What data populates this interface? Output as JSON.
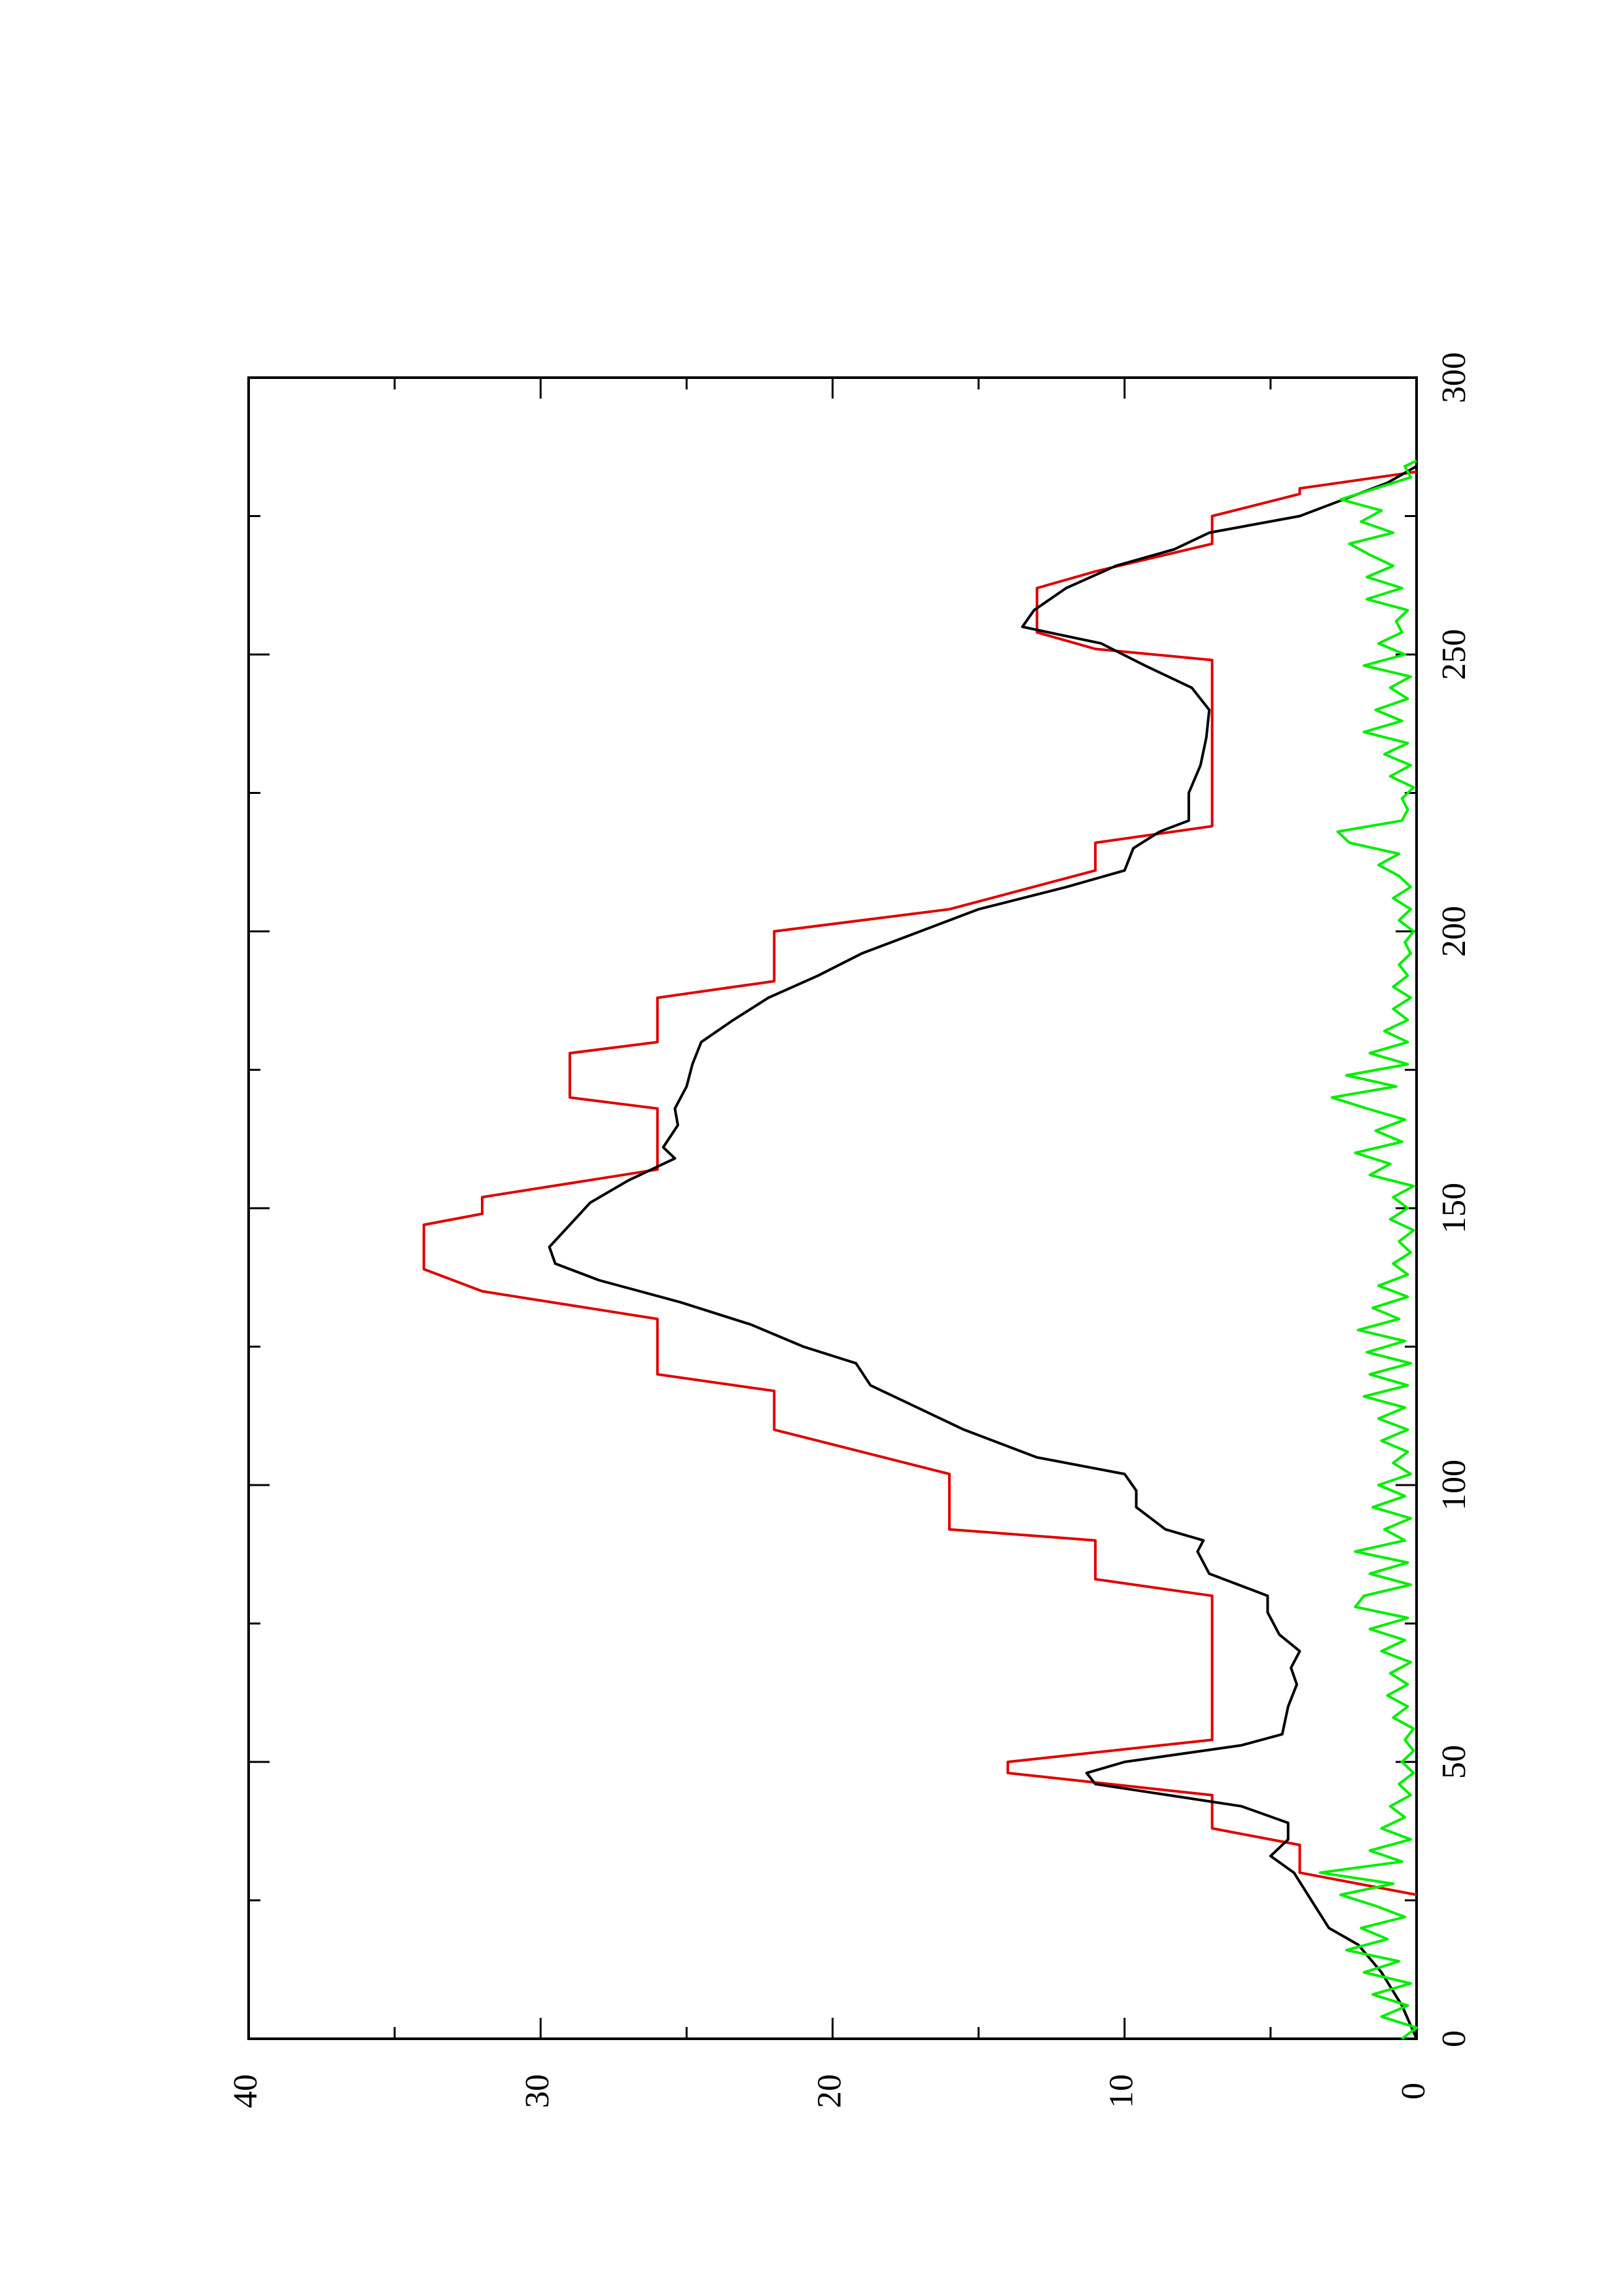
{
  "chart_data": {
    "type": "line",
    "orientation": "rotated-90",
    "title": "",
    "xlabel": "",
    "ylabel": "",
    "xlim": [
      0,
      300
    ],
    "ylim": [
      0,
      40
    ],
    "x_ticks": [
      0,
      50,
      100,
      150,
      200,
      250,
      300
    ],
    "x_minor_ticks": [
      25,
      75,
      125,
      175,
      225,
      275
    ],
    "y_ticks": [
      0,
      10,
      20,
      30,
      40
    ],
    "y_minor_ticks": [
      5,
      15,
      25,
      35
    ],
    "x_tick_labels": [
      "0",
      "50",
      "100",
      "150",
      "200",
      "250",
      "300"
    ],
    "y_tick_labels": [
      "0",
      "10",
      "20",
      "30",
      "40"
    ],
    "grid": false,
    "legend": "none",
    "series": [
      {
        "color": "#e00000",
        "style": "step",
        "points": [
          [
            26,
            0
          ],
          [
            30,
            4
          ],
          [
            35,
            4
          ],
          [
            38,
            7
          ],
          [
            44,
            7
          ],
          [
            48,
            14
          ],
          [
            50,
            14
          ],
          [
            54,
            7
          ],
          [
            80,
            7
          ],
          [
            83,
            11
          ],
          [
            90,
            11
          ],
          [
            92,
            16
          ],
          [
            96,
            16
          ],
          [
            102,
            16
          ],
          [
            110,
            22
          ],
          [
            117,
            22
          ],
          [
            120,
            26
          ],
          [
            130,
            26
          ],
          [
            135,
            32
          ],
          [
            139,
            34
          ],
          [
            147,
            34
          ],
          [
            149,
            32
          ],
          [
            152,
            32
          ],
          [
            157,
            26
          ],
          [
            160,
            26
          ],
          [
            168,
            26
          ],
          [
            170,
            29
          ],
          [
            178,
            29
          ],
          [
            180,
            26
          ],
          [
            188,
            26
          ],
          [
            191,
            22
          ],
          [
            200,
            22
          ],
          [
            204,
            16
          ],
          [
            211,
            11
          ],
          [
            216,
            11
          ],
          [
            219,
            7
          ],
          [
            249,
            7
          ],
          [
            251,
            11
          ],
          [
            254,
            13
          ],
          [
            257,
            13
          ],
          [
            262,
            13
          ],
          [
            265,
            11
          ],
          [
            270,
            7
          ],
          [
            275,
            7
          ],
          [
            279,
            4
          ],
          [
            280,
            4
          ],
          [
            283,
            0
          ]
        ]
      },
      {
        "color": "#000000",
        "style": "line",
        "points": [
          [
            0,
            0
          ],
          [
            6,
            0.5
          ],
          [
            12,
            1.2
          ],
          [
            17,
            2
          ],
          [
            20,
            3
          ],
          [
            25,
            3.6
          ],
          [
            30,
            4.2
          ],
          [
            33,
            5
          ],
          [
            36,
            4.4
          ],
          [
            39,
            4.4
          ],
          [
            42,
            6
          ],
          [
            46,
            11
          ],
          [
            48,
            11.3
          ],
          [
            50,
            10
          ],
          [
            53,
            6
          ],
          [
            55,
            4.6
          ],
          [
            60,
            4.4
          ],
          [
            64,
            4.1
          ],
          [
            67,
            4.3
          ],
          [
            70,
            4
          ],
          [
            73,
            4.7
          ],
          [
            77,
            5.1
          ],
          [
            80,
            5.1
          ],
          [
            84,
            7.1
          ],
          [
            88,
            7.5
          ],
          [
            90,
            7.3
          ],
          [
            92,
            8.6
          ],
          [
            96,
            9.6
          ],
          [
            99,
            9.6
          ],
          [
            102,
            10
          ],
          [
            105,
            13
          ],
          [
            110,
            15.5
          ],
          [
            115,
            17.5
          ],
          [
            118,
            18.7
          ],
          [
            122,
            19.2
          ],
          [
            125,
            21
          ],
          [
            129,
            22.8
          ],
          [
            133,
            25.2
          ],
          [
            137,
            28
          ],
          [
            140,
            29.5
          ],
          [
            143,
            29.7
          ],
          [
            147,
            29
          ],
          [
            151,
            28.3
          ],
          [
            155,
            27
          ],
          [
            159,
            25.4
          ],
          [
            161,
            25.8
          ],
          [
            165,
            25.3
          ],
          [
            168,
            25.4
          ],
          [
            172,
            25
          ],
          [
            176,
            24.8
          ],
          [
            180,
            24.5
          ],
          [
            184,
            23.4
          ],
          [
            188,
            22.2
          ],
          [
            192,
            20.5
          ],
          [
            196,
            19
          ],
          [
            200,
            17
          ],
          [
            204,
            15
          ],
          [
            208,
            12
          ],
          [
            211,
            10
          ],
          [
            215,
            9.7
          ],
          [
            218,
            8.8
          ],
          [
            220,
            7.8
          ],
          [
            225,
            7.8
          ],
          [
            230,
            7.4
          ],
          [
            235,
            7.2
          ],
          [
            240,
            7.1
          ],
          [
            244,
            7.7
          ],
          [
            248,
            9.3
          ],
          [
            252,
            10.8
          ],
          [
            255,
            13.5
          ],
          [
            258,
            13.1
          ],
          [
            262,
            12
          ],
          [
            266,
            10.3
          ],
          [
            269,
            8.3
          ],
          [
            272,
            7.1
          ],
          [
            275,
            4
          ],
          [
            278,
            2.5
          ],
          [
            281,
            1
          ],
          [
            284,
            0
          ]
        ]
      },
      {
        "color": "#00ee00",
        "style": "noise",
        "points": [
          [
            0,
            0.5
          ],
          [
            2,
            0
          ],
          [
            4,
            1.2
          ],
          [
            6,
            0.3
          ],
          [
            8,
            1.5
          ],
          [
            10,
            0.2
          ],
          [
            12,
            1.8
          ],
          [
            14,
            0.6
          ],
          [
            16,
            2.4
          ],
          [
            18,
            1
          ],
          [
            20,
            1.9
          ],
          [
            22,
            0.4
          ],
          [
            24,
            1.4
          ],
          [
            26,
            2.6
          ],
          [
            28,
            0.8
          ],
          [
            30,
            3.3
          ],
          [
            32,
            0.5
          ],
          [
            34,
            1.6
          ],
          [
            36,
            0.2
          ],
          [
            38,
            1.2
          ],
          [
            40,
            0.4
          ],
          [
            42,
            0.9
          ],
          [
            44,
            0.2
          ],
          [
            46,
            0.6
          ],
          [
            48,
            0.1
          ],
          [
            50,
            0.5
          ],
          [
            52,
            0.1
          ],
          [
            54,
            0.4
          ],
          [
            56,
            0.1
          ],
          [
            58,
            0.8
          ],
          [
            60,
            0.3
          ],
          [
            62,
            1
          ],
          [
            64,
            0.3
          ],
          [
            66,
            0.9
          ],
          [
            68,
            0.2
          ],
          [
            70,
            1.2
          ],
          [
            72,
            0.4
          ],
          [
            74,
            1.6
          ],
          [
            76,
            0.3
          ],
          [
            78,
            2.1
          ],
          [
            80,
            1.8
          ],
          [
            82,
            0.2
          ],
          [
            84,
            1.6
          ],
          [
            86,
            0.3
          ],
          [
            88,
            2.1
          ],
          [
            90,
            0.4
          ],
          [
            92,
            1.1
          ],
          [
            94,
            0.2
          ],
          [
            96,
            1.5
          ],
          [
            98,
            0.4
          ],
          [
            100,
            1.3
          ],
          [
            102,
            0.2
          ],
          [
            104,
            0.8
          ],
          [
            106,
            0.3
          ],
          [
            108,
            1.2
          ],
          [
            110,
            0.3
          ],
          [
            112,
            1.3
          ],
          [
            114,
            0.4
          ],
          [
            116,
            1.8
          ],
          [
            118,
            0.3
          ],
          [
            120,
            1.6
          ],
          [
            122,
            0.2
          ],
          [
            124,
            1.7
          ],
          [
            126,
            0.4
          ],
          [
            128,
            2
          ],
          [
            130,
            0.6
          ],
          [
            132,
            1.5
          ],
          [
            134,
            0.3
          ],
          [
            136,
            1.3
          ],
          [
            138,
            0.3
          ],
          [
            140,
            0.8
          ],
          [
            142,
            0.2
          ],
          [
            144,
            0.6
          ],
          [
            146,
            0.1
          ],
          [
            148,
            0.9
          ],
          [
            150,
            0.3
          ],
          [
            152,
            0.8
          ],
          [
            154,
            0.1
          ],
          [
            156,
            1.6
          ],
          [
            158,
            0.9
          ],
          [
            160,
            2.1
          ],
          [
            162,
            0.5
          ],
          [
            164,
            1.4
          ],
          [
            166,
            0.4
          ],
          [
            168,
            1.7
          ],
          [
            170,
            2.9
          ],
          [
            172,
            0.7
          ],
          [
            174,
            2.4
          ],
          [
            176,
            0.3
          ],
          [
            178,
            1.6
          ],
          [
            180,
            0.3
          ],
          [
            182,
            1.1
          ],
          [
            184,
            0.3
          ],
          [
            186,
            0.8
          ],
          [
            188,
            0.2
          ],
          [
            190,
            0.8
          ],
          [
            192,
            0.3
          ],
          [
            194,
            0.6
          ],
          [
            196,
            0.2
          ],
          [
            198,
            0.4
          ],
          [
            200,
            0.1
          ],
          [
            202,
            0.6
          ],
          [
            204,
            0.2
          ],
          [
            206,
            0.8
          ],
          [
            208,
            0.2
          ],
          [
            210,
            0.6
          ],
          [
            212,
            1.3
          ],
          [
            214,
            0.6
          ],
          [
            216,
            2.3
          ],
          [
            218,
            2.7
          ],
          [
            220,
            0.5
          ],
          [
            222,
            0.3
          ],
          [
            224,
            0.5
          ],
          [
            226,
            0.1
          ],
          [
            228,
            0.9
          ],
          [
            230,
            0.2
          ],
          [
            232,
            1.1
          ],
          [
            234,
            0.3
          ],
          [
            236,
            1.8
          ],
          [
            238,
            0.5
          ],
          [
            240,
            1.4
          ],
          [
            242,
            0.3
          ],
          [
            244,
            0.9
          ],
          [
            246,
            0.2
          ],
          [
            248,
            1.8
          ],
          [
            250,
            0.4
          ],
          [
            252,
            1.3
          ],
          [
            254,
            0.5
          ],
          [
            256,
            0.7
          ],
          [
            258,
            0.3
          ],
          [
            260,
            1.7
          ],
          [
            262,
            0.5
          ],
          [
            264,
            1.7
          ],
          [
            266,
            0.8
          ],
          [
            268,
            1.6
          ],
          [
            270,
            2.3
          ],
          [
            272,
            0.8
          ],
          [
            274,
            1.9
          ],
          [
            276,
            1.2
          ],
          [
            278,
            2.6
          ],
          [
            280,
            1.4
          ],
          [
            282,
            0.2
          ],
          [
            284,
            0.4
          ],
          [
            285,
            0
          ]
        ]
      }
    ]
  }
}
